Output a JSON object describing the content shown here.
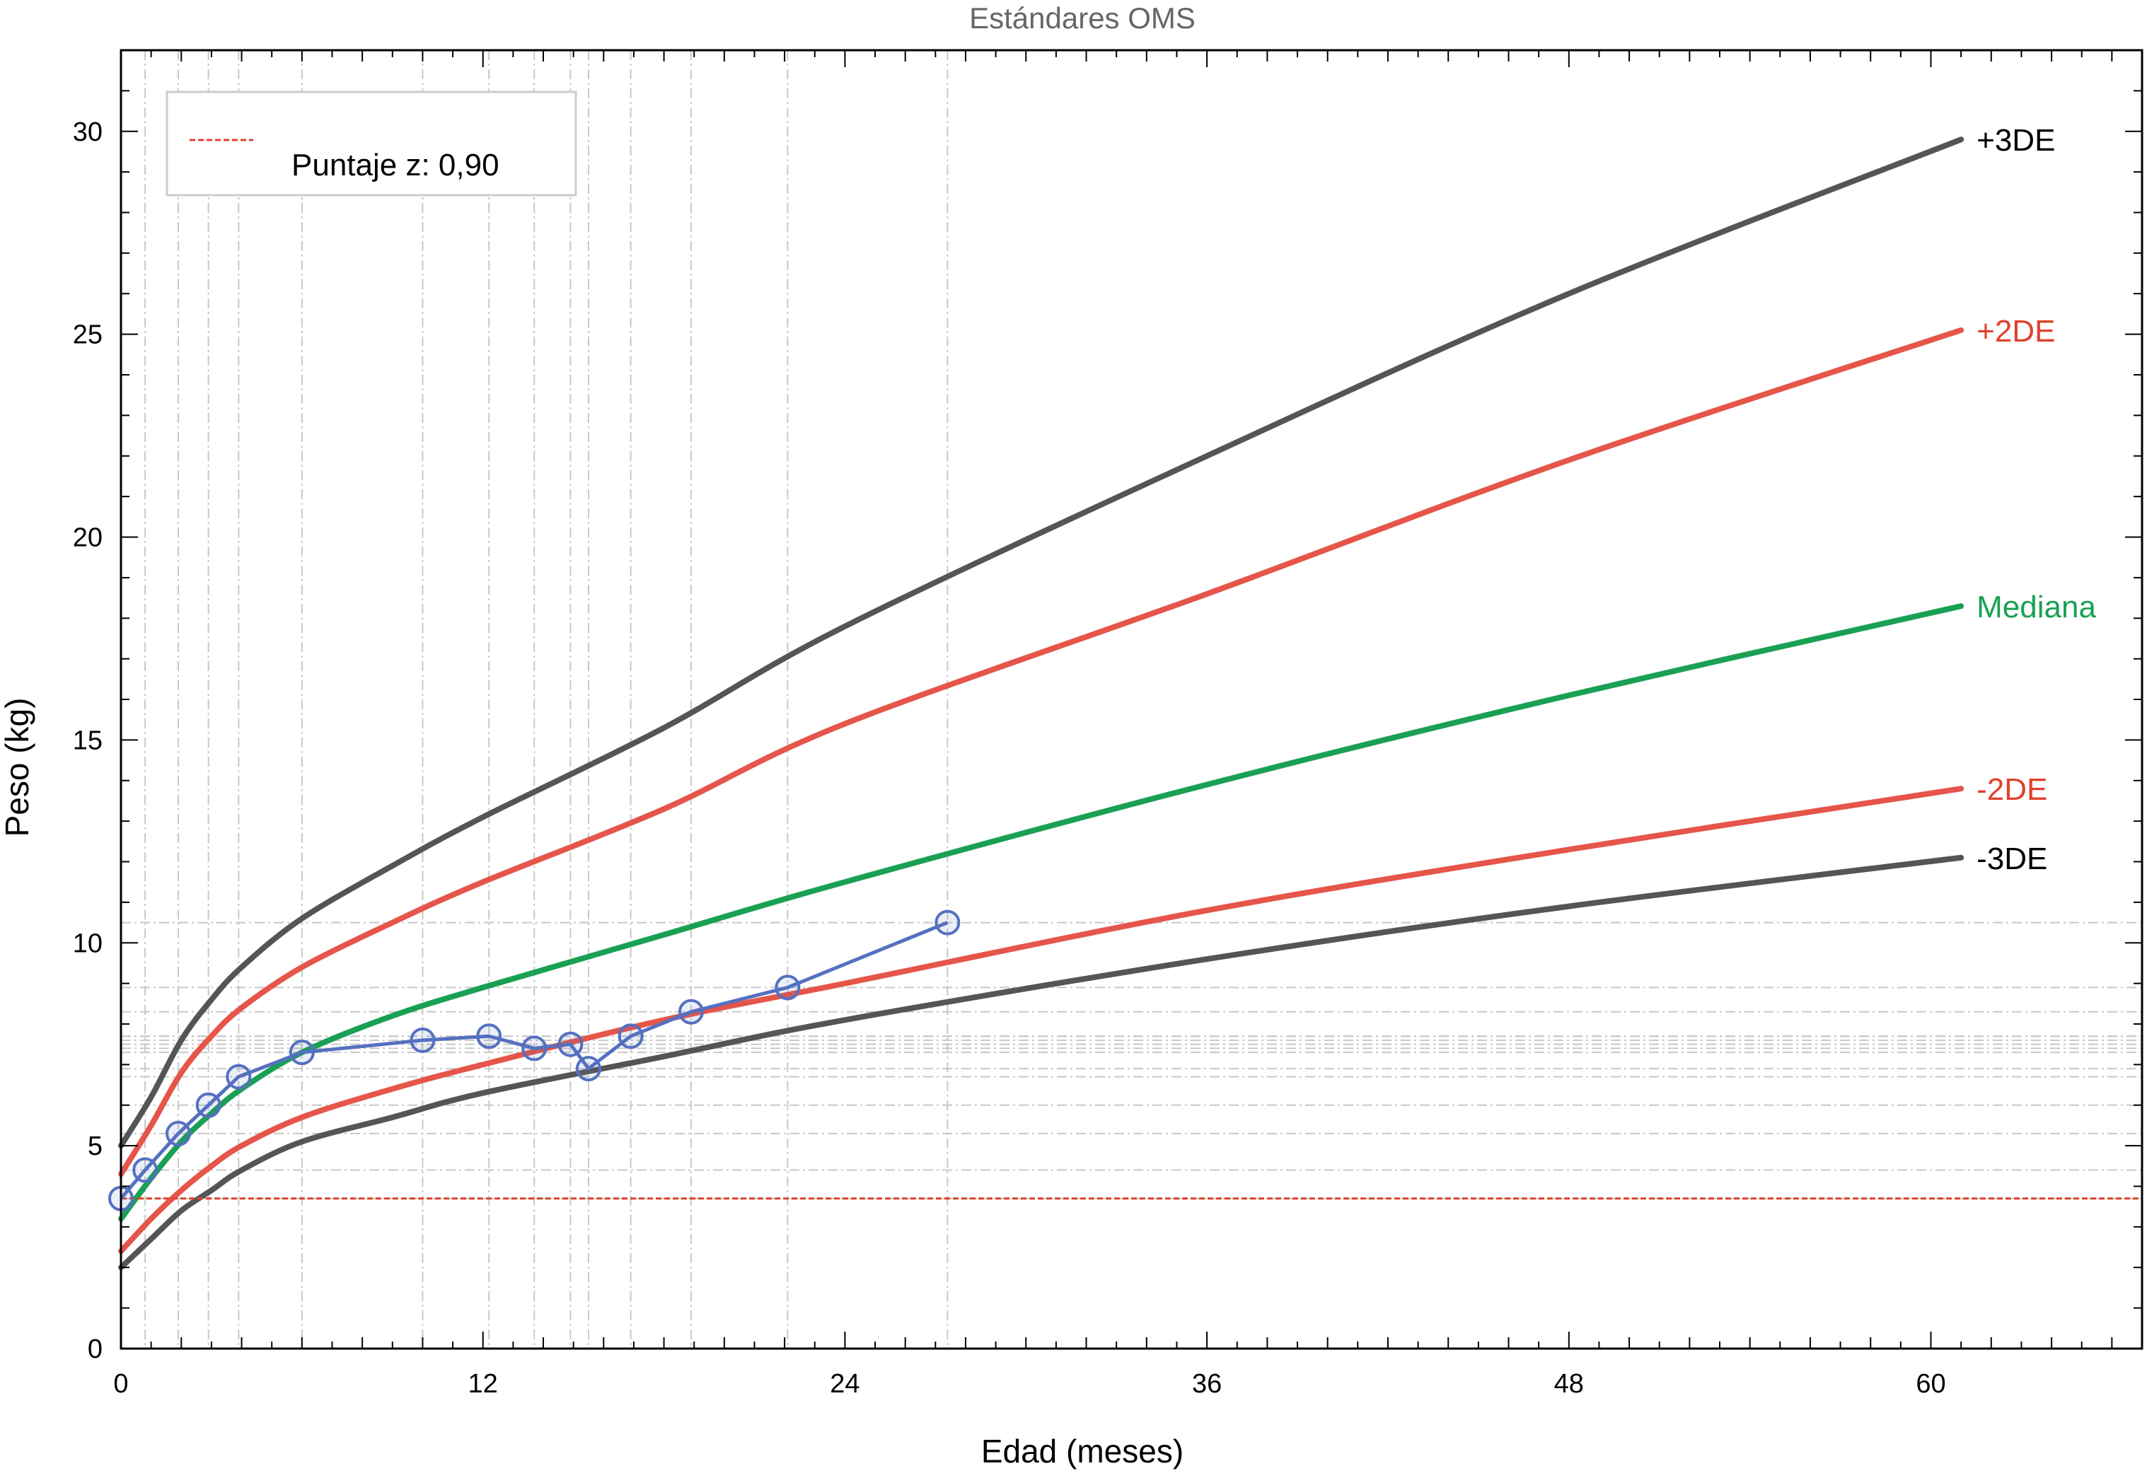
{
  "chart_data": {
    "type": "line",
    "title": "Estándares OMS",
    "xlabel": "Edad (meses)",
    "ylabel": "Peso (kg)",
    "xlim": [
      0,
      67
    ],
    "ylim": [
      0,
      32
    ],
    "xticks": [
      0,
      12,
      24,
      36,
      48,
      60
    ],
    "yticks": [
      0,
      5,
      10,
      15,
      20,
      25,
      30
    ],
    "grid": false,
    "legend": {
      "position": "top-left",
      "entries": [
        {
          "label": "Puntaje z: 0,90",
          "style": "dashed",
          "color": "#e0412c"
        }
      ]
    },
    "reference_line": {
      "y": 3.7,
      "color": "#e0412c",
      "style": "dashed"
    },
    "curves": [
      {
        "name": "+3DE",
        "color": "#555555",
        "label_color": "#000000",
        "x": [
          0,
          1,
          2,
          3,
          4,
          6,
          9,
          12,
          18,
          24,
          36,
          48,
          61
        ],
        "values": [
          5.0,
          6.2,
          7.6,
          8.6,
          9.4,
          10.6,
          11.9,
          13.1,
          15.3,
          17.8,
          22.0,
          26.0,
          29.8
        ]
      },
      {
        "name": "+2DE",
        "color": "#e5554a",
        "label_color": "#e0412c",
        "x": [
          0,
          1,
          2,
          3,
          4,
          6,
          9,
          12,
          18,
          24,
          36,
          48,
          61
        ],
        "values": [
          4.3,
          5.5,
          6.8,
          7.7,
          8.4,
          9.4,
          10.5,
          11.5,
          13.3,
          15.4,
          18.6,
          21.9,
          25.1
        ]
      },
      {
        "name": "Mediana",
        "color": "#1aa054",
        "label_color": "#1aa054",
        "x": [
          0,
          1,
          2,
          3,
          4,
          6,
          9,
          12,
          18,
          24,
          36,
          48,
          61
        ],
        "values": [
          3.2,
          4.2,
          5.1,
          5.8,
          6.4,
          7.3,
          8.2,
          8.9,
          10.2,
          11.5,
          13.9,
          16.1,
          18.3
        ]
      },
      {
        "name": "-2DE",
        "color": "#e5554a",
        "label_color": "#e0412c",
        "x": [
          0,
          1,
          2,
          3,
          4,
          6,
          9,
          12,
          18,
          24,
          36,
          48,
          61
        ],
        "values": [
          2.4,
          3.2,
          3.9,
          4.5,
          5.0,
          5.7,
          6.4,
          7.0,
          8.1,
          9.0,
          10.8,
          12.3,
          13.8
        ]
      },
      {
        "name": "-3DE",
        "color": "#555555",
        "label_color": "#000000",
        "x": [
          0,
          1,
          2,
          3,
          4,
          6,
          9,
          12,
          18,
          24,
          36,
          48,
          61
        ],
        "values": [
          2.0,
          2.7,
          3.4,
          3.9,
          4.4,
          5.1,
          5.7,
          6.3,
          7.2,
          8.1,
          9.6,
          10.9,
          12.1
        ]
      }
    ],
    "patient": {
      "color": "#5570c0",
      "x": [
        0,
        0.8,
        1.9,
        2.9,
        3.9,
        6.0,
        10.0,
        12.2,
        13.7,
        14.9,
        15.5,
        16.9,
        18.9,
        22.1,
        27.4
      ],
      "values": [
        3.7,
        4.4,
        5.3,
        6.0,
        6.7,
        7.3,
        7.6,
        7.7,
        7.4,
        7.5,
        6.9,
        7.7,
        8.3,
        8.9,
        10.5
      ]
    }
  }
}
